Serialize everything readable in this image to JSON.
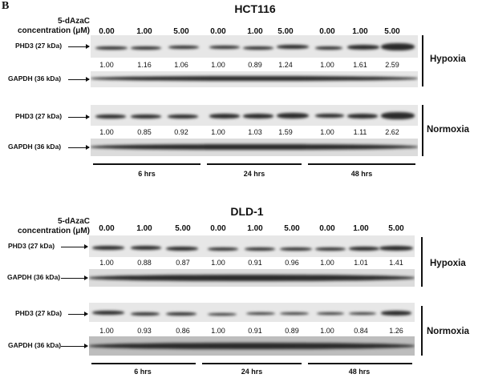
{
  "figure": {
    "panel_letter": "B"
  },
  "concentration_label_line1": "5-dAzaC",
  "concentration_label_line2": "concentration (μM)",
  "concentrations": [
    "0.00",
    "1.00",
    "5.00",
    "0.00",
    "1.00",
    "5.00",
    "0.00",
    "1.00",
    "5.00"
  ],
  "labels": {
    "phd3": "PHD3 (27 kDa)",
    "gapdh": "GAPDH (36 kDa)",
    "hypoxia": "Hypoxia",
    "normoxia": "Normoxia"
  },
  "times": [
    "6 hrs",
    "24 hrs",
    "48 hrs"
  ],
  "panels": [
    {
      "title": "HCT116",
      "hypoxia_ratios": [
        "1.00",
        "1.16",
        "1.06",
        "1.00",
        "0.89",
        "1.24",
        "1.00",
        "1.61",
        "2.59"
      ],
      "normoxia_ratios": [
        "1.00",
        "0.85",
        "0.92",
        "1.00",
        "1.03",
        "1.59",
        "1.00",
        "1.11",
        "2.62"
      ]
    },
    {
      "title": "DLD-1",
      "hypoxia_ratios": [
        "1.00",
        "0.88",
        "0.87",
        "1.00",
        "0.91",
        "0.96",
        "1.00",
        "1.01",
        "1.41"
      ],
      "normoxia_ratios": [
        "1.00",
        "0.93",
        "0.86",
        "1.00",
        "0.91",
        "0.89",
        "1.00",
        "0.84",
        "1.26"
      ]
    }
  ]
}
